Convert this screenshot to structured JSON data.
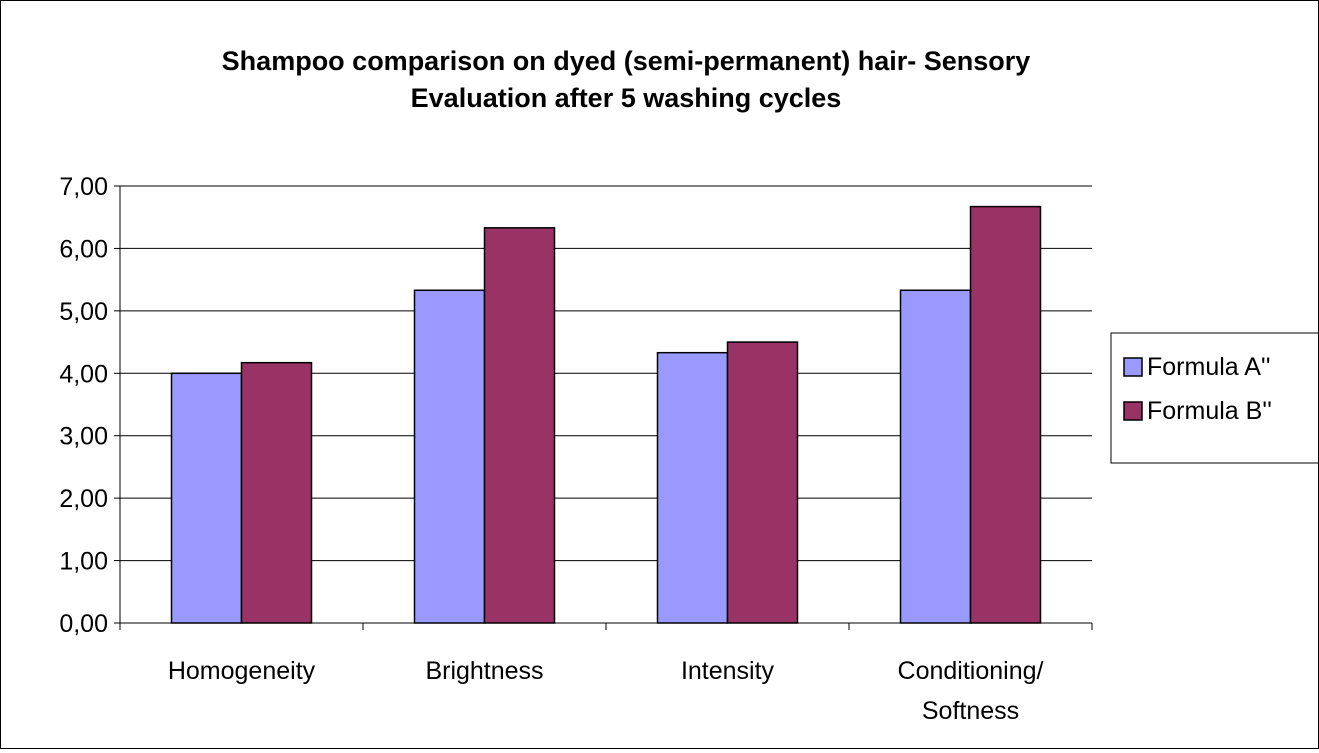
{
  "chart_data": {
    "type": "bar",
    "title_lines": [
      "Shampoo comparison on dyed (semi-permanent) hair- Sensory",
      "Evaluation after 5 washing cycles"
    ],
    "xlabel": "",
    "ylabel": "",
    "categories": [
      [
        "Homogeneity"
      ],
      [
        "Brightness"
      ],
      [
        "Intensity"
      ],
      [
        "Conditioning/",
        "Softness"
      ]
    ],
    "series": [
      {
        "name": "Formula A''",
        "color": "#9999ff",
        "values": [
          4.0,
          5.33,
          4.33,
          5.33
        ]
      },
      {
        "name": "Formula B''",
        "color": "#993366",
        "values": [
          4.17,
          6.33,
          4.5,
          6.67
        ]
      }
    ],
    "ylim": [
      0,
      7
    ],
    "ytick_step": 1,
    "ytick_labels": [
      "0,00",
      "1,00",
      "2,00",
      "3,00",
      "4,00",
      "5,00",
      "6,00",
      "7,00"
    ],
    "grid": true,
    "legend_position": "right"
  }
}
